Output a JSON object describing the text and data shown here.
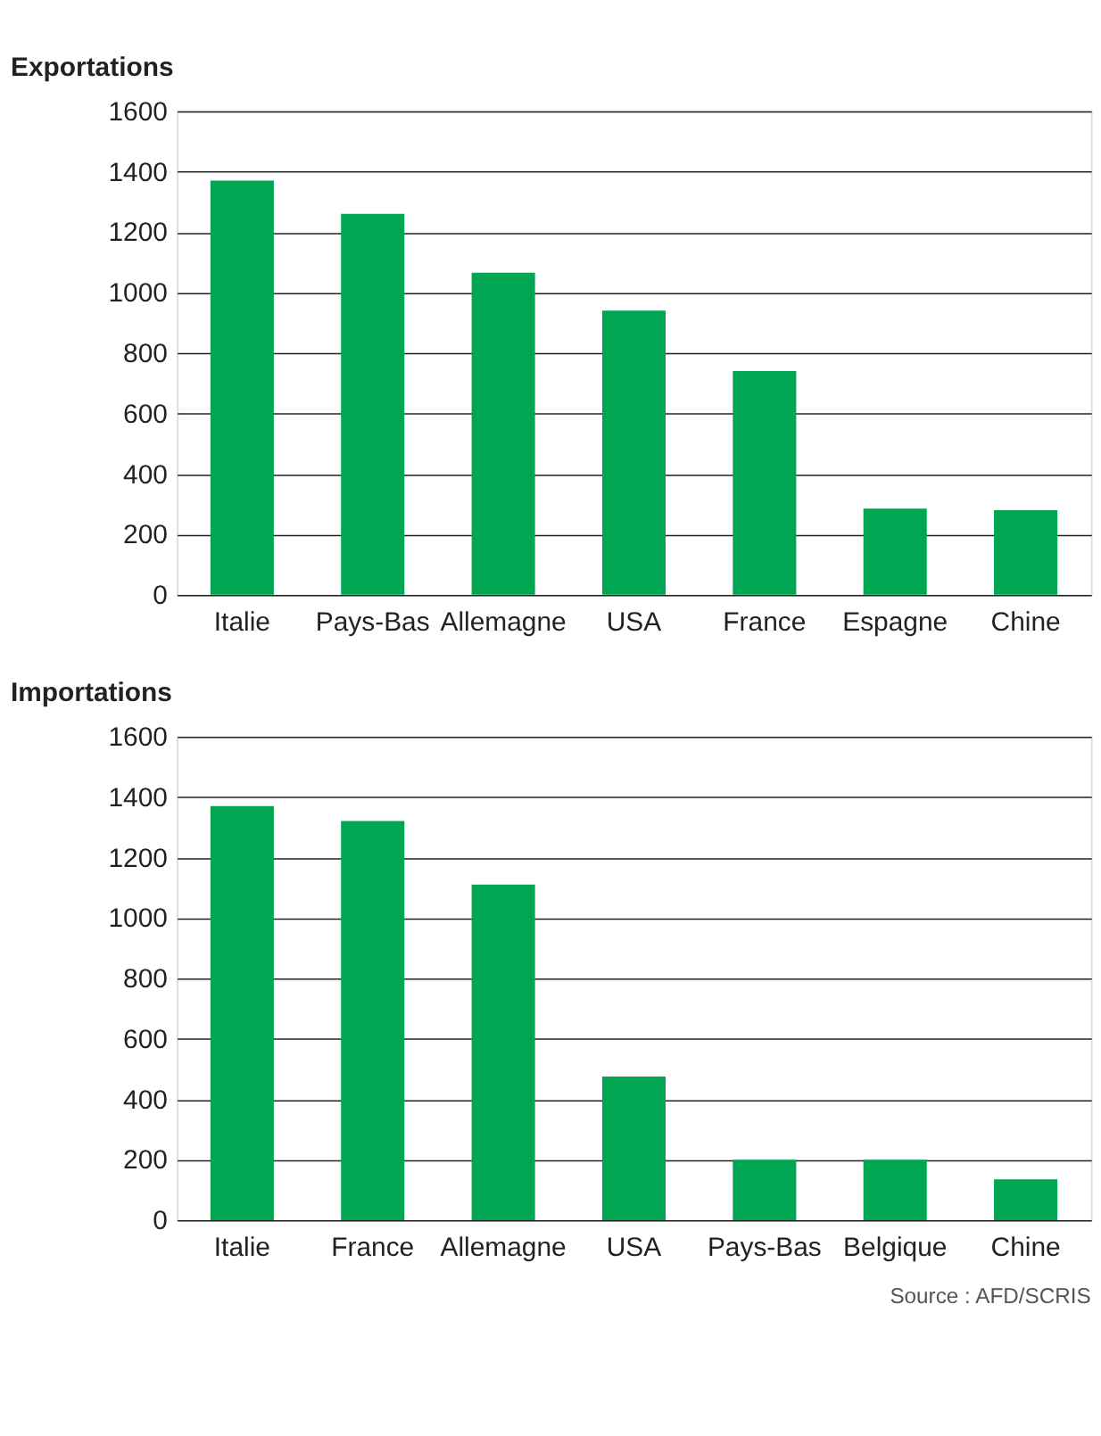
{
  "chart_data": [
    {
      "type": "bar",
      "title": "Exportations",
      "categories": [
        "Italie",
        "Pays-Bas",
        "Allemagne",
        "USA",
        "France",
        "Espagne",
        "Chine"
      ],
      "values": [
        1370,
        1260,
        1065,
        940,
        740,
        285,
        280
      ],
      "color": "#00a651",
      "ylim": [
        0,
        1600
      ],
      "yticks": [
        0,
        200,
        400,
        600,
        800,
        1000,
        1200,
        1400,
        1600
      ],
      "grid": "y"
    },
    {
      "type": "bar",
      "title": "Importations",
      "categories": [
        "Italie",
        "France",
        "Allemagne",
        "USA",
        "Pays-Bas",
        "Belgique",
        "Chine"
      ],
      "values": [
        1370,
        1320,
        1110,
        475,
        200,
        200,
        135
      ],
      "color": "#00a651",
      "ylim": [
        0,
        1600
      ],
      "yticks": [
        0,
        200,
        400,
        600,
        800,
        1000,
        1200,
        1400,
        1600
      ],
      "grid": "y",
      "annotations": [
        "Source : AFD/SCRIS"
      ]
    }
  ]
}
